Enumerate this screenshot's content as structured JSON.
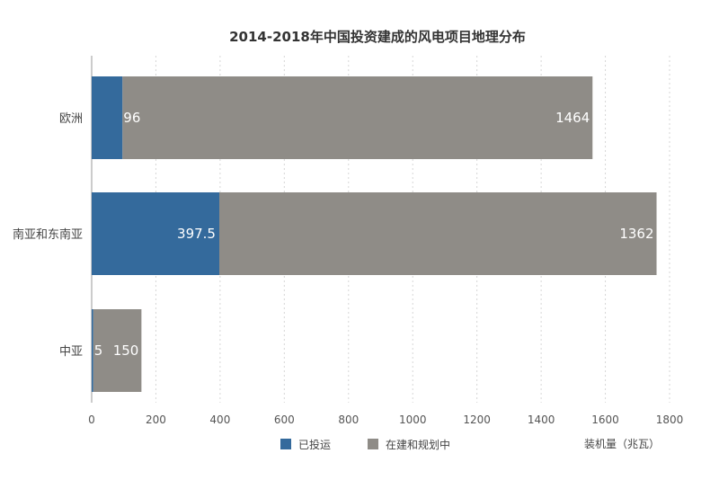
{
  "chart_data": {
    "type": "bar",
    "orientation": "horizontal",
    "stacked": true,
    "title": "2014-2018年中国投资建成的风电项目地理分布",
    "xlabel": "装机量（兆瓦）",
    "categories": [
      "欧洲",
      "南亚和东南亚",
      "中亚"
    ],
    "series": [
      {
        "name": "已投运",
        "values": [
          96,
          397.5,
          5
        ],
        "labels": [
          "96",
          "397.5",
          "5"
        ],
        "color": "#346a9c"
      },
      {
        "name": "在建和规划中",
        "values": [
          1464,
          1362,
          150
        ],
        "labels": [
          "1464",
          "1362",
          "150"
        ],
        "color": "#8f8c87"
      }
    ],
    "xlim": [
      0,
      1800
    ],
    "xticks": [
      "0",
      "200",
      "400",
      "600",
      "800",
      "1000",
      "1200",
      "1400",
      "1600",
      "1800"
    ],
    "grid": true,
    "legend_position": "bottom"
  }
}
